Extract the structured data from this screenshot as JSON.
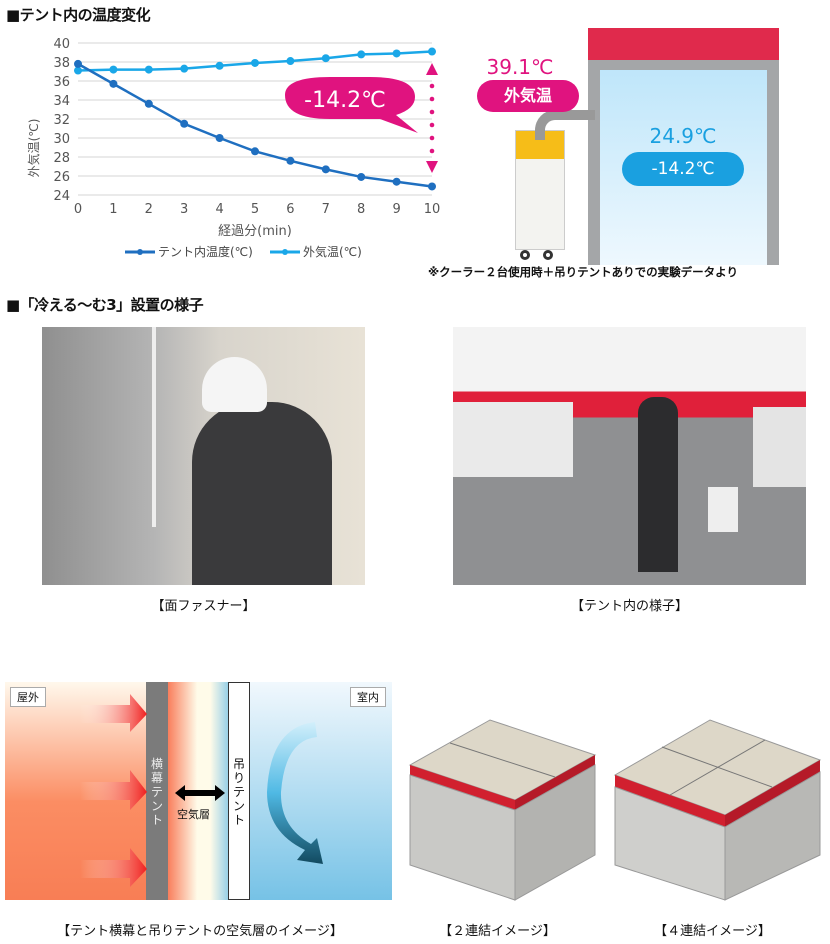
{
  "section1": {
    "title": "■テント内の温度変化"
  },
  "chart_data": {
    "type": "line",
    "title": "",
    "xlabel": "経過分(min)",
    "ylabel": "外気温(℃)",
    "x": [
      0,
      1,
      2,
      3,
      4,
      5,
      6,
      7,
      8,
      9,
      10
    ],
    "xlim": [
      0,
      10
    ],
    "ylim": [
      24,
      40
    ],
    "yticks": [
      24,
      26,
      28,
      30,
      32,
      34,
      36,
      38,
      40
    ],
    "grid": true,
    "legend": "bottom",
    "series": [
      {
        "name": "テント内温度(℃)",
        "color": "#1f6fc0",
        "values": [
          37.8,
          35.7,
          33.6,
          31.5,
          30.0,
          28.6,
          27.6,
          26.7,
          25.9,
          25.4,
          24.9
        ]
      },
      {
        "name": "外気温(℃)",
        "color": "#1aa7e8",
        "values": [
          37.1,
          37.2,
          37.2,
          37.3,
          37.6,
          37.9,
          38.1,
          38.4,
          38.8,
          38.9,
          39.1
        ]
      }
    ],
    "annotation": "-14.2℃",
    "annotation_color": "#e0137f"
  },
  "diagram1": {
    "outside_temp": "39.1℃",
    "outside_label": "外気温",
    "inside_temp": "24.9℃",
    "inside_diff": "-14.2℃",
    "note": "※クーラー２台使用時＋吊りテントありでの実験データより"
  },
  "section2": {
    "title": "■「冷える～む3」設置の様子",
    "photo1_caption": "【面ファスナー】",
    "photo2_caption": "【テント内の様子】"
  },
  "airlayer": {
    "outside": "屋外",
    "inside": "室内",
    "side_tent": "横幕テント",
    "hanging_tent": "吊りテント",
    "air_layer": "空気層",
    "caption": "【テント横幕と吊りテントの空気層のイメージ】"
  },
  "tents": {
    "two_caption": "【２連結イメージ】",
    "four_caption": "【４連結イメージ】"
  }
}
